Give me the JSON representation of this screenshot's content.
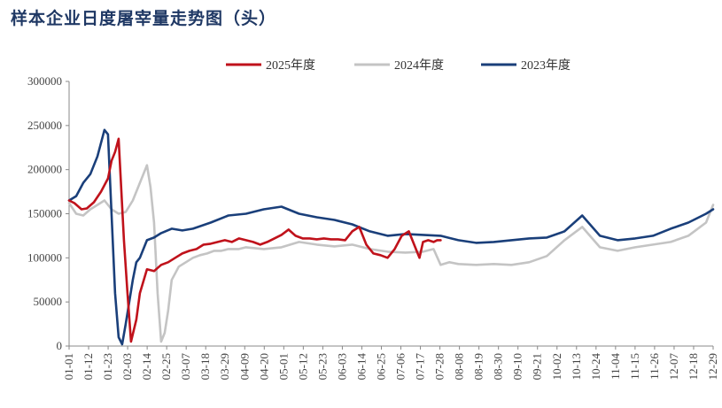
{
  "title": "样本企业日度屠宰量走势图（头）",
  "colors": {
    "s2025": "#c0121b",
    "s2024": "#c4c4c4",
    "s2023": "#1a3f7a",
    "title": "#1f3864",
    "axis": "#888888"
  },
  "chart_data": {
    "type": "line",
    "title": "样本企业日度屠宰量走势图（头）",
    "xlabel": "",
    "ylabel": "",
    "ylim": [
      0,
      300000
    ],
    "yticks": [
      "300000",
      "250000",
      "200000",
      "150000",
      "100000",
      "50000",
      "0"
    ],
    "xticks": [
      "01-01",
      "01-12",
      "01-23",
      "02-03",
      "02-14",
      "02-25",
      "03-07",
      "03-18",
      "03-29",
      "04-09",
      "04-20",
      "05-01",
      "05-12",
      "05-23",
      "06-03",
      "06-14",
      "06-25",
      "07-06",
      "07-17",
      "07-28",
      "08-08",
      "08-19",
      "08-30",
      "09-10",
      "09-21",
      "10-02",
      "10-13",
      "10-24",
      "11-04",
      "11-15",
      "11-26",
      "12-07",
      "12-18",
      "12-29"
    ],
    "legend_position": "top",
    "grid": false,
    "series": [
      {
        "name": "2025年度",
        "color": "#c0121b",
        "x": [
          0,
          3,
          7,
          10,
          14,
          18,
          22,
          24,
          26,
          28,
          31,
          33,
          35,
          38,
          40,
          44,
          48,
          52,
          56,
          60,
          64,
          68,
          72,
          76,
          80,
          84,
          88,
          92,
          96,
          100,
          104,
          108,
          112,
          116,
          120,
          124,
          128,
          132,
          136,
          140,
          144,
          148,
          152,
          156,
          160,
          164,
          168,
          172,
          176,
          180,
          184,
          188,
          192,
          196,
          198,
          200,
          203,
          206,
          208,
          210
        ],
        "y": [
          165000,
          162000,
          155000,
          156000,
          163000,
          175000,
          190000,
          210000,
          220000,
          235000,
          120000,
          60000,
          5000,
          30000,
          60000,
          87000,
          85000,
          92000,
          95000,
          100000,
          105000,
          108000,
          110000,
          115000,
          116000,
          118000,
          120000,
          118000,
          122000,
          120000,
          118000,
          115000,
          118000,
          122000,
          126000,
          132000,
          125000,
          122000,
          122000,
          121000,
          122000,
          121000,
          121000,
          120000,
          130000,
          135000,
          115000,
          105000,
          103000,
          100000,
          110000,
          125000,
          130000,
          110000,
          100000,
          118000,
          120000,
          118000,
          120000,
          120000
        ]
      },
      {
        "name": "2024年度",
        "color": "#c4c4c4",
        "x": [
          0,
          4,
          8,
          12,
          16,
          20,
          24,
          28,
          32,
          36,
          40,
          44,
          46,
          48,
          50,
          52,
          54,
          56,
          58,
          62,
          66,
          70,
          74,
          78,
          82,
          86,
          90,
          96,
          100,
          110,
          120,
          130,
          140,
          150,
          160,
          170,
          180,
          190,
          200,
          206,
          210,
          215,
          220,
          230,
          240,
          250,
          260,
          270,
          280,
          290,
          300,
          310,
          320,
          330,
          340,
          350,
          360,
          364
        ],
        "y": [
          162000,
          150000,
          148000,
          155000,
          160000,
          165000,
          155000,
          150000,
          152000,
          165000,
          185000,
          205000,
          180000,
          140000,
          60000,
          5000,
          15000,
          40000,
          75000,
          90000,
          95000,
          100000,
          103000,
          105000,
          108000,
          108000,
          110000,
          110000,
          112000,
          110000,
          112000,
          118000,
          115000,
          113000,
          115000,
          110000,
          107000,
          106000,
          107000,
          110000,
          92000,
          95000,
          93000,
          92000,
          93000,
          92000,
          95000,
          102000,
          120000,
          135000,
          112000,
          108000,
          112000,
          115000,
          118000,
          125000,
          140000,
          160000
        ]
      },
      {
        "name": "2023年度",
        "color": "#1a3f7a",
        "x": [
          0,
          4,
          8,
          12,
          16,
          20,
          22,
          24,
          26,
          28,
          30,
          32,
          34,
          36,
          38,
          40,
          44,
          48,
          52,
          58,
          64,
          70,
          80,
          90,
          100,
          110,
          120,
          130,
          140,
          150,
          160,
          170,
          180,
          190,
          200,
          210,
          220,
          230,
          240,
          250,
          260,
          270,
          280,
          290,
          300,
          310,
          320,
          330,
          340,
          350,
          360,
          364
        ],
        "y": [
          165000,
          170000,
          185000,
          195000,
          215000,
          245000,
          240000,
          150000,
          60000,
          10000,
          2000,
          25000,
          50000,
          75000,
          95000,
          100000,
          120000,
          123000,
          128000,
          133000,
          131000,
          133000,
          140000,
          148000,
          150000,
          155000,
          158000,
          150000,
          146000,
          143000,
          138000,
          130000,
          125000,
          127000,
          126000,
          125000,
          120000,
          117000,
          118000,
          120000,
          122000,
          123000,
          130000,
          148000,
          125000,
          120000,
          122000,
          125000,
          133000,
          140000,
          150000,
          155000
        ]
      }
    ]
  },
  "legend": {
    "items": [
      "2025年度",
      "2024年度",
      "2023年度"
    ]
  }
}
